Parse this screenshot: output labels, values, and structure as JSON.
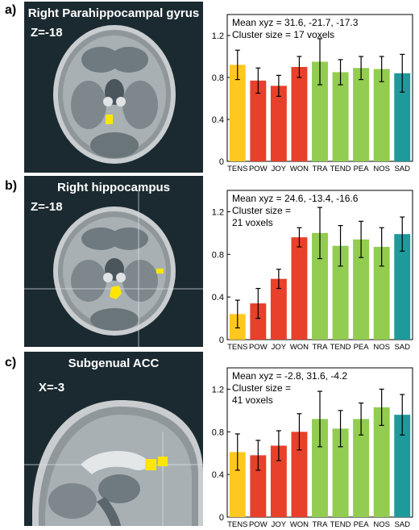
{
  "panels": [
    {
      "letter": "a)",
      "region": "Right Parahippocampal gyrus",
      "coord": "Z=-18"
    },
    {
      "letter": "b)",
      "region": "Right hippocampus",
      "coord": "Z=-18"
    },
    {
      "letter": "c)",
      "region": "Subgenual ACC",
      "coord": "X=-3"
    }
  ],
  "colors": {
    "yellow": "#FFC820",
    "red": "#E8402A",
    "green": "#92CC50",
    "teal": "#1E9A9A",
    "brain_bg": "#1b2a31",
    "activation": "#FFE600"
  },
  "chart_data": [
    {
      "type": "bar",
      "annotation": [
        "Mean xyz = 31.6, -21.7, -17.3",
        "Cluster size = 17 voxels"
      ],
      "categories": [
        "TENS",
        "POW",
        "JOY",
        "WON",
        "TRA",
        "TEND",
        "PEA",
        "NOS",
        "SAD"
      ],
      "values": [
        0.92,
        0.77,
        0.72,
        0.9,
        0.95,
        0.85,
        0.89,
        0.88,
        0.84
      ],
      "errors": [
        0.14,
        0.12,
        0.1,
        0.1,
        0.22,
        0.12,
        0.11,
        0.12,
        0.18
      ],
      "bar_colors": [
        "yellow",
        "red",
        "red",
        "red",
        "green",
        "green",
        "green",
        "green",
        "teal"
      ],
      "ylim": [
        0,
        1.4
      ],
      "yticks": [
        0,
        0.4,
        0.8,
        1.2
      ],
      "ytick_labels": [
        "0",
        "0.4",
        "0.8",
        "1.2"
      ],
      "grid": false
    },
    {
      "type": "bar",
      "annotation": [
        "Mean xyz = 24.6, -13.4, -16.6",
        "Cluster size =",
        "21 voxels"
      ],
      "categories": [
        "TENS",
        "POW",
        "JOY",
        "WON",
        "TRA",
        "TEND",
        "PEA",
        "NOS",
        "SAD"
      ],
      "values": [
        0.24,
        0.34,
        0.57,
        0.96,
        1.0,
        0.88,
        0.94,
        0.87,
        0.99
      ],
      "errors": [
        0.13,
        0.14,
        0.09,
        0.09,
        0.24,
        0.19,
        0.17,
        0.18,
        0.16
      ],
      "bar_colors": [
        "yellow",
        "red",
        "red",
        "red",
        "green",
        "green",
        "green",
        "green",
        "teal"
      ],
      "ylim": [
        0,
        1.4
      ],
      "yticks": [
        0,
        0.4,
        0.8,
        1.2
      ],
      "ytick_labels": [
        "0",
        "0.4",
        "0.8",
        "1.2"
      ],
      "grid": false
    },
    {
      "type": "bar",
      "annotation": [
        "Mean xyz = -2.8, 31.6, -4.2",
        "Cluster size =",
        "41 voxels"
      ],
      "categories": [
        "TENS",
        "POW",
        "JOY",
        "WON",
        "TRA",
        "TEND",
        "PEA",
        "NOS",
        "SAD"
      ],
      "values": [
        0.61,
        0.58,
        0.67,
        0.8,
        0.92,
        0.83,
        0.92,
        1.03,
        0.96
      ],
      "errors": [
        0.17,
        0.14,
        0.14,
        0.17,
        0.26,
        0.17,
        0.15,
        0.17,
        0.19
      ],
      "bar_colors": [
        "yellow",
        "red",
        "red",
        "red",
        "green",
        "green",
        "green",
        "green",
        "teal"
      ],
      "ylim": [
        0,
        1.4
      ],
      "yticks": [
        0,
        0.4,
        0.8,
        1.2
      ],
      "ytick_labels": [
        "0",
        "0.4",
        "0.8",
        "1.2"
      ],
      "grid": false
    }
  ]
}
